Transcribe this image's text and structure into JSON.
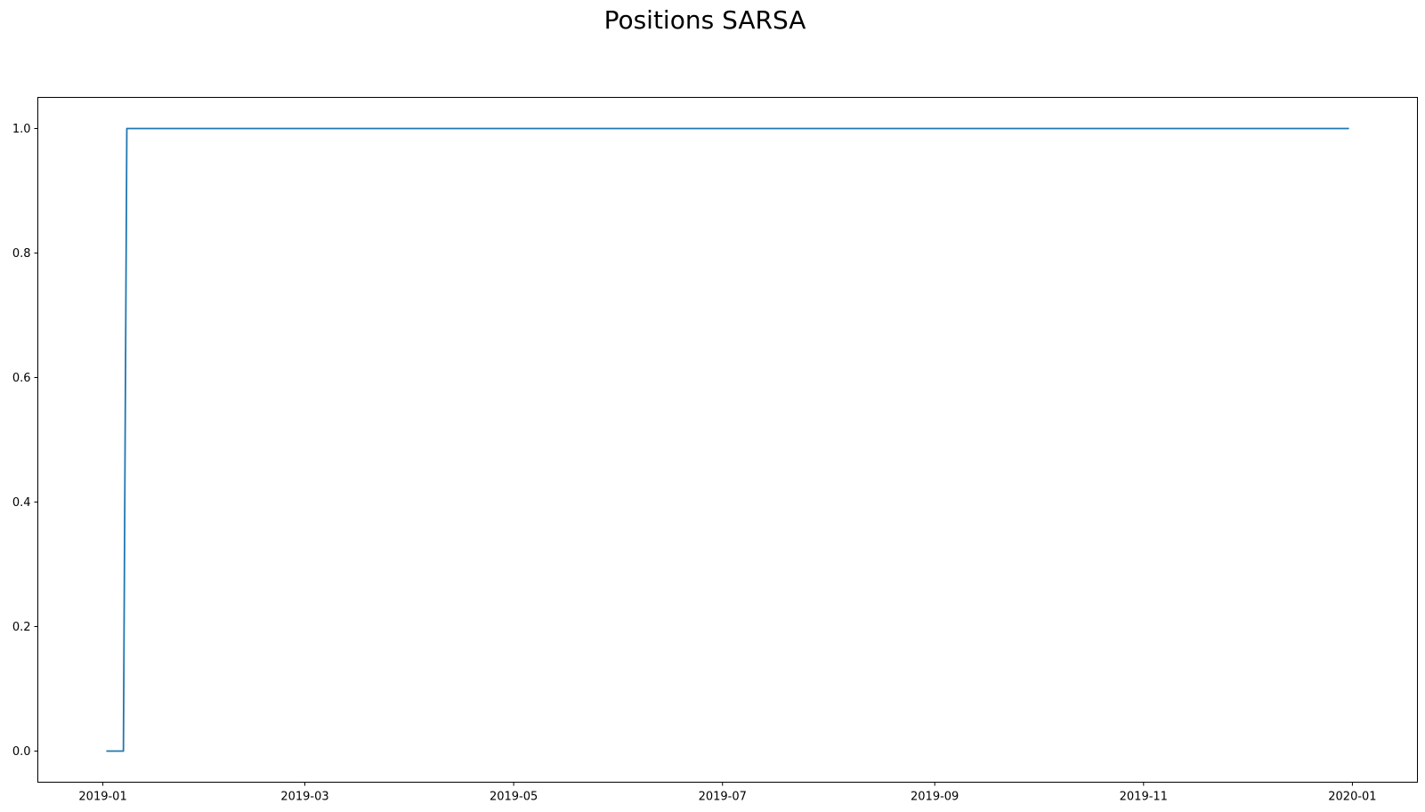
{
  "chart_data": {
    "type": "line",
    "title": "Positions SARSA",
    "xlabel": "",
    "ylabel": "",
    "series": [
      {
        "color": "#1f77b4",
        "points": [
          {
            "x": "2019-01-02",
            "y": 0.0
          },
          {
            "x": "2019-01-07",
            "y": 0.0
          },
          {
            "x": "2019-01-08",
            "y": 1.0
          },
          {
            "x": "2019-12-31",
            "y": 1.0
          }
        ]
      }
    ],
    "x_ticks": [
      "2019-01",
      "2019-03",
      "2019-05",
      "2019-07",
      "2019-09",
      "2019-11",
      "2020-01"
    ],
    "y_ticks": [
      "0.0",
      "0.2",
      "0.4",
      "0.6",
      "0.8",
      "1.0"
    ],
    "xlim": [
      "2018-12-13",
      "2020-01-20"
    ],
    "ylim": [
      -0.05,
      1.05
    ],
    "grid": false,
    "legend": "none"
  }
}
